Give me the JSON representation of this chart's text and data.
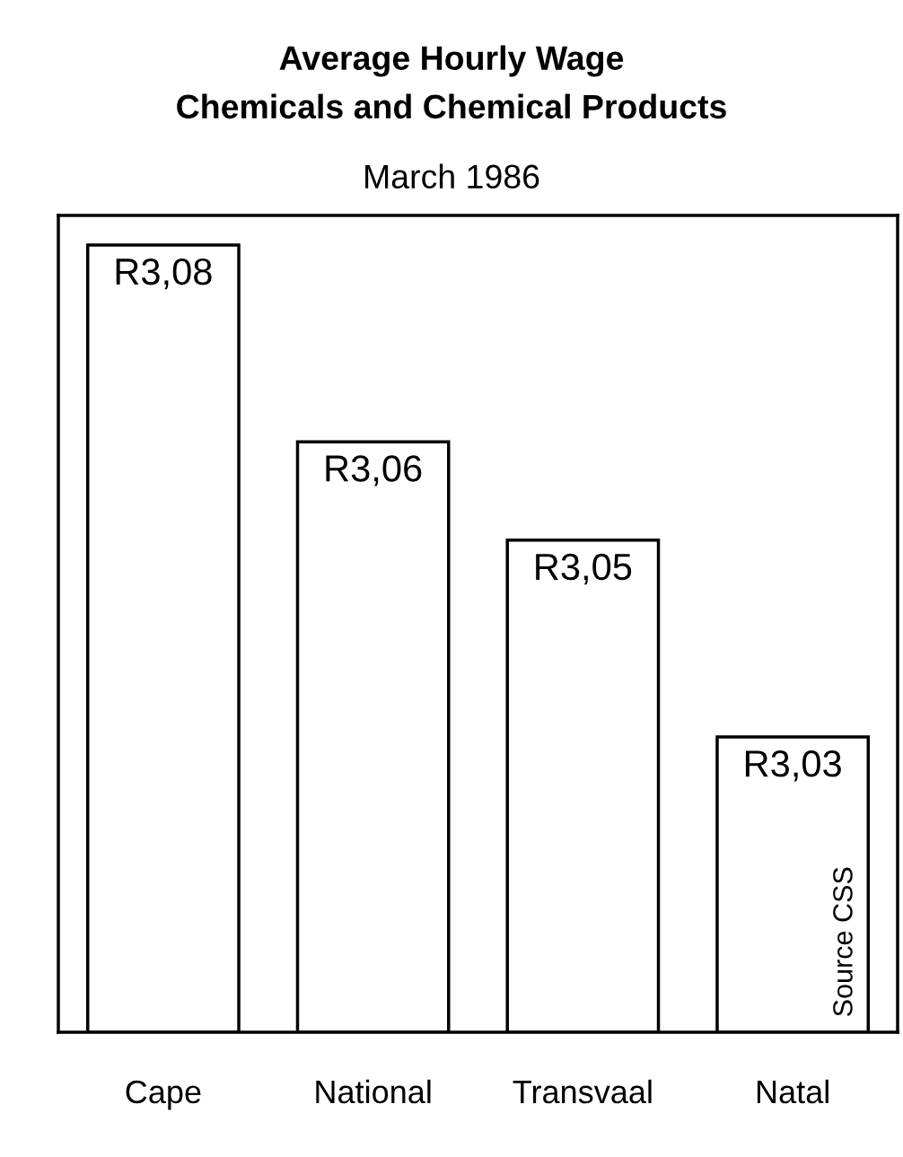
{
  "chart_data": {
    "type": "bar",
    "title": "Average Hourly Wage\nChemicals and Chemical Products",
    "subtitle": "March 1986",
    "categories": [
      "Cape",
      "National",
      "Transvaal",
      "Natal"
    ],
    "values": [
      3.08,
      3.06,
      3.05,
      3.03
    ],
    "value_labels": [
      "R3,08",
      "R3,06",
      "R3,05",
      "R3,03"
    ],
    "color": "#ffffff",
    "ylim": [
      3.0,
      3.083
    ],
    "tick_labels": "x",
    "grid": false,
    "annotations": [
      {
        "text": "Source CSS",
        "x": "Natal",
        "y": 3.0
      }
    ]
  }
}
